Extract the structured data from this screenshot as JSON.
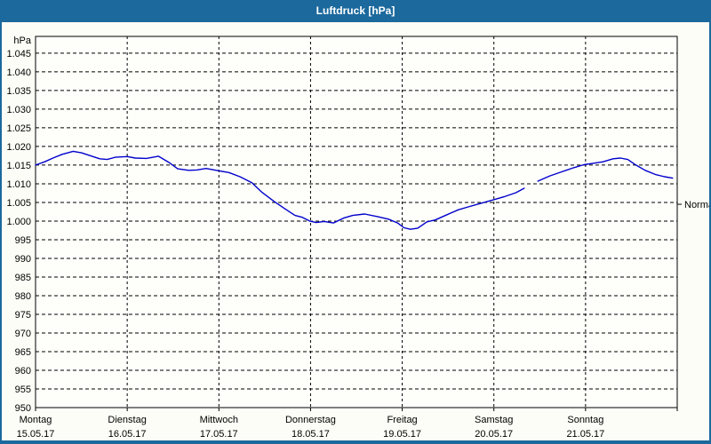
{
  "window": {
    "title": "Luftdruck [hPa]"
  },
  "colors": {
    "titlebar": "#1c699d",
    "window_border": "#1c699d",
    "background": "#fdfdf7",
    "plot_background": "#fefefb",
    "grid": "#000000",
    "axis": "#000000",
    "line": "#0000cc",
    "title_text": "#ffffff",
    "label_text": "#000000"
  },
  "chart_data": {
    "type": "line",
    "title": "Luftdruck [hPa]",
    "ylabel": "hPa",
    "unit": "hPa",
    "ylim": [
      950,
      1049.5
    ],
    "y_tick_step": 5,
    "grid": "dashed-both-axes",
    "legend": "none",
    "x_range_days": [
      0,
      7
    ],
    "y_ticks": [
      {
        "v": 1045,
        "label": "1.045"
      },
      {
        "v": 1040,
        "label": "1.040"
      },
      {
        "v": 1035,
        "label": "1.035"
      },
      {
        "v": 1030,
        "label": "1.030"
      },
      {
        "v": 1025,
        "label": "1.025"
      },
      {
        "v": 1020,
        "label": "1.020"
      },
      {
        "v": 1015,
        "label": "1.015"
      },
      {
        "v": 1010,
        "label": "1.010"
      },
      {
        "v": 1005,
        "label": "1.005"
      },
      {
        "v": 1000,
        "label": "1.000"
      },
      {
        "v": 995,
        "label": "995"
      },
      {
        "v": 990,
        "label": "990"
      },
      {
        "v": 985,
        "label": "985"
      },
      {
        "v": 980,
        "label": "980"
      },
      {
        "v": 975,
        "label": "975"
      },
      {
        "v": 970,
        "label": "970"
      },
      {
        "v": 965,
        "label": "965"
      },
      {
        "v": 960,
        "label": "960"
      },
      {
        "v": 955,
        "label": "955"
      },
      {
        "v": 950,
        "label": "950"
      }
    ],
    "x_days": [
      {
        "name": "Montag",
        "date": "15.05.17"
      },
      {
        "name": "Dienstag",
        "date": "16.05.17"
      },
      {
        "name": "Mittwoch",
        "date": "17.05.17"
      },
      {
        "name": "Donnerstag",
        "date": "18.05.17"
      },
      {
        "name": "Freitag",
        "date": "19.05.17"
      },
      {
        "name": "Samstag",
        "date": "20.05.17"
      },
      {
        "name": "Sonntag",
        "date": "21.05.17"
      }
    ],
    "annotations": [
      {
        "label": "Normal",
        "value": 1004.5,
        "axis": "right"
      }
    ],
    "series": [
      {
        "name": "Luftdruck",
        "color": "#0000cc",
        "segments": [
          [
            [
              0.0,
              1015.0
            ],
            [
              0.1,
              1015.9
            ],
            [
              0.19,
              1016.9
            ],
            [
              0.29,
              1017.9
            ],
            [
              0.41,
              1018.7
            ],
            [
              0.5,
              1018.3
            ],
            [
              0.6,
              1017.5
            ],
            [
              0.7,
              1016.7
            ],
            [
              0.78,
              1016.5
            ],
            [
              0.87,
              1017.1
            ],
            [
              1.0,
              1017.3
            ],
            [
              1.09,
              1016.9
            ],
            [
              1.21,
              1016.8
            ],
            [
              1.34,
              1017.4
            ],
            [
              1.45,
              1015.8
            ],
            [
              1.55,
              1014.0
            ],
            [
              1.67,
              1013.6
            ],
            [
              1.76,
              1013.7
            ],
            [
              1.86,
              1014.1
            ],
            [
              1.99,
              1013.5
            ],
            [
              2.11,
              1013.0
            ],
            [
              2.23,
              1011.9
            ],
            [
              2.36,
              1010.3
            ],
            [
              2.47,
              1007.7
            ],
            [
              2.6,
              1005.3
            ],
            [
              2.72,
              1003.3
            ],
            [
              2.83,
              1001.5
            ],
            [
              2.91,
              1001.0
            ],
            [
              2.99,
              1000.0
            ],
            [
              3.06,
              999.6
            ],
            [
              3.15,
              999.9
            ],
            [
              3.25,
              999.5
            ],
            [
              3.36,
              1000.8
            ],
            [
              3.46,
              1001.5
            ],
            [
              3.59,
              1001.9
            ],
            [
              3.73,
              1001.2
            ],
            [
              3.85,
              1000.5
            ],
            [
              3.95,
              999.5
            ],
            [
              4.02,
              998.2
            ],
            [
              4.09,
              997.8
            ],
            [
              4.17,
              998.1
            ],
            [
              4.27,
              999.8
            ],
            [
              4.36,
              1000.3
            ],
            [
              4.48,
              1001.6
            ],
            [
              4.61,
              1003.0
            ],
            [
              4.72,
              1003.8
            ],
            [
              4.85,
              1004.7
            ],
            [
              4.98,
              1005.6
            ],
            [
              5.11,
              1006.5
            ],
            [
              5.24,
              1007.6
            ],
            [
              5.33,
              1008.8
            ]
          ],
          [
            [
              5.48,
              1010.7
            ],
            [
              5.61,
              1012.1
            ],
            [
              5.75,
              1013.3
            ],
            [
              5.87,
              1014.3
            ],
            [
              5.98,
              1015.1
            ],
            [
              6.09,
              1015.5
            ],
            [
              6.19,
              1015.9
            ],
            [
              6.3,
              1016.7
            ],
            [
              6.38,
              1016.9
            ],
            [
              6.46,
              1016.5
            ],
            [
              6.55,
              1015.0
            ],
            [
              6.65,
              1013.6
            ],
            [
              6.76,
              1012.5
            ],
            [
              6.86,
              1011.9
            ],
            [
              6.95,
              1011.5
            ]
          ]
        ]
      }
    ]
  }
}
